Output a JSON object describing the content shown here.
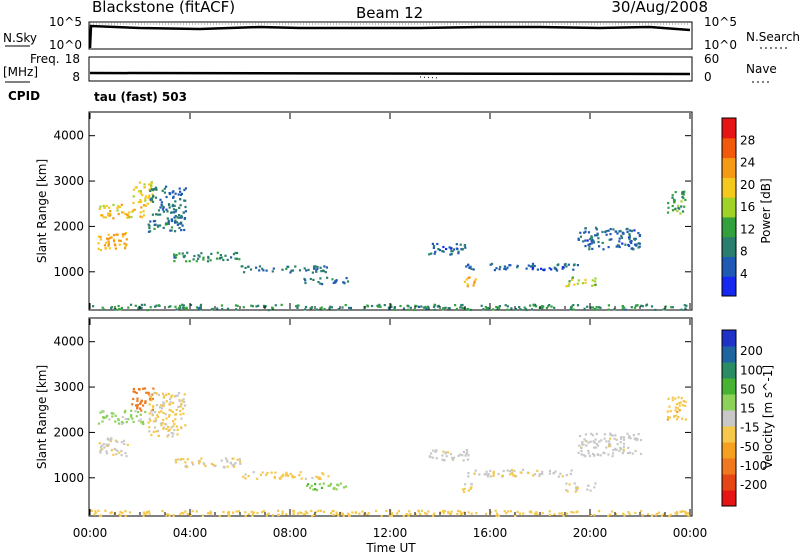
{
  "header": {
    "station": "Blackstone (fitACF)",
    "beam": "Beam 12",
    "date": "30/Aug/2008"
  },
  "noise_panel": {
    "left_label": "N.Sky",
    "left_ticks": [
      "10^5",
      "10^0"
    ],
    "right_label": "N.Search",
    "right_ticks": [
      "10^5",
      "10^0"
    ]
  },
  "freq_panel": {
    "left_label_1": "Freq.",
    "left_label_2": "[MHz]",
    "left_ticks": [
      "18",
      "8"
    ],
    "right_label": "Nave",
    "right_ticks": [
      "60",
      "0"
    ],
    "cpid_label": "CPID",
    "cpid_value": "tau (fast) 503"
  },
  "x_axis": {
    "label": "Time UT",
    "ticks": [
      "00:00",
      "04:00",
      "08:00",
      "12:00",
      "16:00",
      "20:00",
      "00:00"
    ]
  },
  "power_panel": {
    "ylabel": "Slant Range [km]",
    "yticks": [
      "1000",
      "2000",
      "3000",
      "4000"
    ],
    "colorbar_label": "Power [dB]",
    "colorbar_ticks": [
      "4",
      "8",
      "12",
      "16",
      "20",
      "24",
      "28"
    ],
    "colors": [
      "#1428f0",
      "#1e5ab4",
      "#2a7e6e",
      "#32a03c",
      "#a0d228",
      "#f5c81e",
      "#f59a14",
      "#f05a0a",
      "#e61414"
    ]
  },
  "velocity_panel": {
    "ylabel": "Slant Range [km]",
    "yticks": [
      "1000",
      "2000",
      "3000",
      "4000"
    ],
    "colorbar_label": "Velocity [m s^-1]",
    "colorbar_ticks": [
      "200",
      "100",
      "50",
      "15",
      "-15",
      "-50",
      "-100",
      "-200"
    ],
    "colors": [
      "#1e32c8",
      "#1e64a0",
      "#2a8c64",
      "#46b432",
      "#8cd25a",
      "#c8c8c8",
      "#f5c84b",
      "#f5a01e",
      "#f0781e",
      "#e64614",
      "#e61414"
    ]
  },
  "chart_data": {
    "type": "heatmap",
    "x_range_hours": [
      0,
      24
    ],
    "y_range_km": [
      180,
      4500
    ],
    "echo_regions": [
      {
        "t0": 0.3,
        "t1": 1.5,
        "r0": 1500,
        "r1": 1900,
        "power": 22,
        "velocity": -10
      },
      {
        "t0": 0.3,
        "t1": 2.2,
        "r0": 2200,
        "r1": 2500,
        "power": 20,
        "velocity": 20
      },
      {
        "t0": 1.6,
        "t1": 2.5,
        "r0": 2500,
        "r1": 3000,
        "power": 18,
        "velocity": -180
      },
      {
        "t0": 2.3,
        "t1": 3.8,
        "r0": 1900,
        "r1": 2900,
        "power": 8,
        "velocity": -20
      },
      {
        "t0": 3.3,
        "t1": 6.0,
        "r0": 1250,
        "r1": 1450,
        "power": 10,
        "velocity": -15
      },
      {
        "t0": 6.0,
        "t1": 9.5,
        "r0": 1000,
        "r1": 1150,
        "power": 8,
        "velocity": -25
      },
      {
        "t0": 8.5,
        "t1": 10.3,
        "r0": 750,
        "r1": 900,
        "power": 8,
        "velocity": 40
      },
      {
        "t0": 13.5,
        "t1": 15.2,
        "r0": 1400,
        "r1": 1650,
        "power": 6,
        "velocity": -5
      },
      {
        "t0": 14.8,
        "t1": 15.4,
        "r0": 700,
        "r1": 900,
        "power": 22,
        "velocity": -20
      },
      {
        "t0": 15.0,
        "t1": 19.5,
        "r0": 1050,
        "r1": 1200,
        "power": 6,
        "velocity": -10
      },
      {
        "t0": 19.0,
        "t1": 20.2,
        "r0": 700,
        "r1": 900,
        "power": 16,
        "velocity": -10
      },
      {
        "t0": 19.5,
        "t1": 22.0,
        "r0": 1500,
        "r1": 2000,
        "power": 6,
        "velocity": -5
      },
      {
        "t0": 23.0,
        "t1": 23.8,
        "r0": 2300,
        "r1": 2800,
        "power": 12,
        "velocity": -40
      },
      {
        "t0": 0.0,
        "t1": 23.9,
        "r0": 180,
        "r1": 300,
        "power": 10,
        "velocity": -30
      }
    ]
  }
}
